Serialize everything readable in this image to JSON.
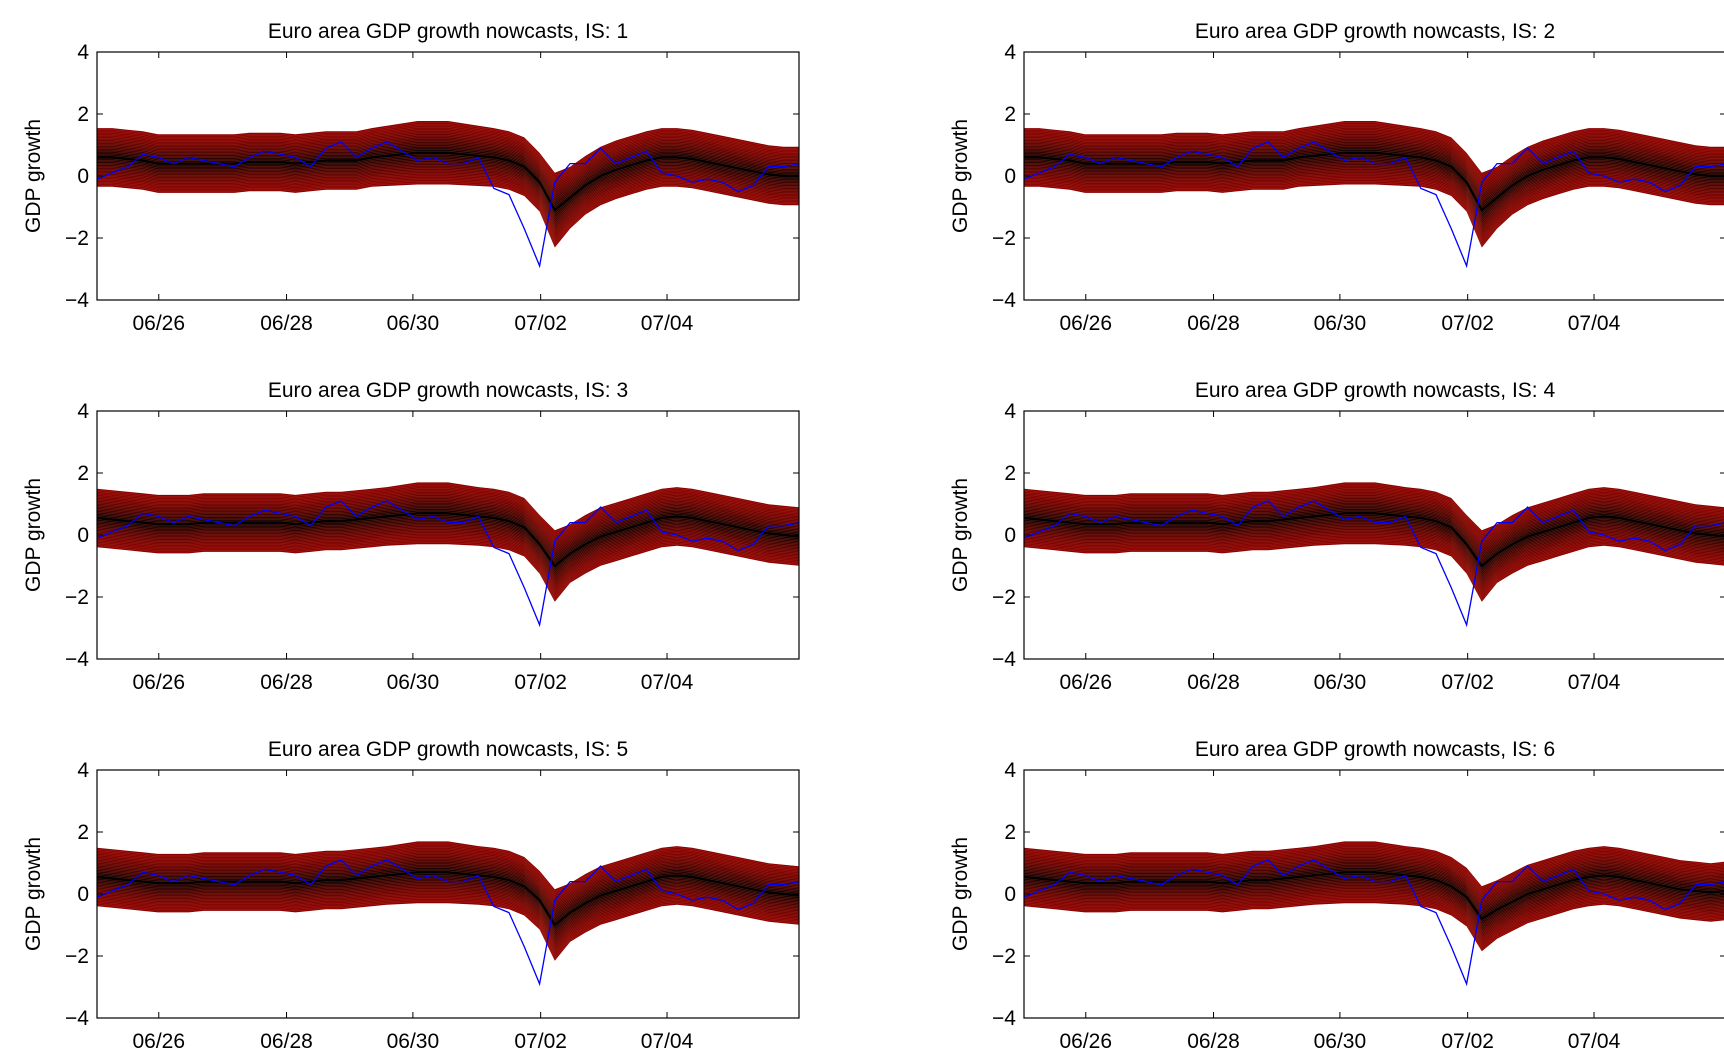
{
  "chart_data": [
    {
      "type": "area",
      "title": "Euro area GDP growth nowcasts, IS: 1",
      "ylabel": "GDP growth",
      "xlabel": "",
      "ylim": [
        -4,
        4
      ],
      "yticks": [
        -4,
        -2,
        0,
        2,
        4
      ],
      "xticks": [
        "06/26",
        "06/28",
        "06/30",
        "07/02",
        "07/04"
      ],
      "grid": false,
      "x_range": [
        "2006Q2",
        "2007Q4"
      ],
      "bands": {
        "colors": [
          "#8b0000",
          "#000000"
        ],
        "levels": 20
      },
      "actual": {
        "color": "#0000ff",
        "x": [
          "2005Q2",
          "2005Q3",
          "2005Q4",
          "2006Q1",
          "2006Q2",
          "2006Q3",
          "2006Q4",
          "2007Q1",
          "2007Q2",
          "2007Q3",
          "2007Q4",
          "2008Q1",
          "2008Q2",
          "2008Q3",
          "2008Q4",
          "2009Q1",
          "2009Q2",
          "2009Q3",
          "2009Q4",
          "2010Q1",
          "2010Q2",
          "2010Q3",
          "2010Q4",
          "2011Q1",
          "2011Q2",
          "2011Q3",
          "2011Q4",
          "2012Q1",
          "2012Q2",
          "2012Q3",
          "2012Q4",
          "2013Q1",
          "2013Q2",
          "2013Q3",
          "2013Q4",
          "2014Q1",
          "2014Q2",
          "2014Q3",
          "2014Q4",
          "2015Q1",
          "2015Q2",
          "2015Q3",
          "2015Q4",
          "2016Q1",
          "2016Q2",
          "2016Q3",
          "2016Q4"
        ],
        "values": [
          -0.1,
          0.1,
          0.3,
          0.7,
          0.6,
          0.4,
          0.6,
          0.5,
          0.4,
          0.3,
          0.6,
          0.8,
          0.7,
          0.6,
          0.3,
          0.9,
          1.1,
          0.6,
          0.9,
          1.1,
          0.8,
          0.5,
          0.6,
          0.4,
          0.4,
          0.6,
          -0.4,
          -0.6,
          -1.7,
          -2.9,
          -0.2,
          0.4,
          0.4,
          0.9,
          0.4,
          0.6,
          0.8,
          0.1,
          0.0,
          -0.2,
          -0.1,
          -0.2,
          -0.5,
          -0.3,
          0.3,
          0.3,
          0.4
        ]
      },
      "median": {
        "color": "#000000",
        "x": [
          "2005Q2",
          "2005Q3",
          "2005Q4",
          "2006Q1",
          "2006Q2",
          "2006Q3",
          "2006Q4",
          "2007Q1",
          "2007Q2",
          "2007Q3",
          "2007Q4",
          "2008Q1",
          "2008Q2",
          "2008Q3",
          "2008Q4",
          "2009Q1",
          "2009Q2",
          "2009Q3",
          "2009Q4",
          "2010Q1",
          "2010Q2",
          "2010Q3",
          "2010Q4",
          "2011Q1",
          "2011Q2",
          "2011Q3",
          "2011Q4",
          "2012Q1",
          "2012Q2",
          "2012Q3",
          "2012Q4",
          "2013Q1",
          "2013Q2",
          "2013Q3",
          "2013Q4",
          "2014Q1",
          "2014Q2",
          "2014Q3",
          "2014Q4",
          "2015Q1",
          "2015Q2",
          "2015Q3",
          "2015Q4",
          "2016Q1",
          "2016Q2",
          "2016Q3",
          "2016Q4"
        ],
        "values": [
          0.6,
          0.6,
          0.55,
          0.5,
          0.4,
          0.4,
          0.4,
          0.4,
          0.4,
          0.4,
          0.45,
          0.45,
          0.45,
          0.4,
          0.45,
          0.5,
          0.5,
          0.5,
          0.6,
          0.65,
          0.7,
          0.75,
          0.75,
          0.75,
          0.7,
          0.65,
          0.6,
          0.5,
          0.3,
          -0.2,
          -1.1,
          -0.7,
          -0.3,
          0.0,
          0.2,
          0.35,
          0.5,
          0.6,
          0.6,
          0.55,
          0.45,
          0.35,
          0.25,
          0.15,
          0.05,
          0.0,
          0.0
        ],
        "spread": 0.45
      }
    },
    {
      "type": "area",
      "title": "Euro area GDP growth nowcasts, IS: 2",
      "ylabel": "GDP growth",
      "xlabel": "",
      "ylim": [
        -4,
        4
      ],
      "yticks": [
        -4,
        -2,
        0,
        2,
        4
      ],
      "xticks": [
        "06/26",
        "06/28",
        "06/30",
        "07/02",
        "07/04"
      ],
      "grid": false,
      "bands": {
        "colors": [
          "#8b0000",
          "#000000"
        ],
        "levels": 20
      },
      "actual": {
        "color": "#0000ff",
        "values": [
          -0.1,
          0.1,
          0.3,
          0.7,
          0.6,
          0.4,
          0.6,
          0.5,
          0.4,
          0.3,
          0.6,
          0.8,
          0.7,
          0.6,
          0.3,
          0.9,
          1.1,
          0.6,
          0.9,
          1.1,
          0.8,
          0.5,
          0.6,
          0.4,
          0.4,
          0.6,
          -0.4,
          -0.6,
          -1.7,
          -2.9,
          -0.2,
          0.4,
          0.4,
          0.9,
          0.4,
          0.6,
          0.8,
          0.1,
          0.0,
          -0.2,
          -0.1,
          -0.2,
          -0.5,
          -0.3,
          0.3,
          0.3,
          0.4
        ]
      },
      "median": {
        "color": "#000000",
        "values": [
          0.6,
          0.6,
          0.55,
          0.5,
          0.4,
          0.4,
          0.4,
          0.4,
          0.4,
          0.4,
          0.45,
          0.45,
          0.45,
          0.4,
          0.45,
          0.5,
          0.5,
          0.5,
          0.6,
          0.65,
          0.7,
          0.75,
          0.75,
          0.75,
          0.7,
          0.65,
          0.6,
          0.5,
          0.3,
          -0.2,
          -1.1,
          -0.7,
          -0.3,
          0.0,
          0.2,
          0.35,
          0.5,
          0.6,
          0.6,
          0.55,
          0.45,
          0.35,
          0.25,
          0.15,
          0.05,
          0.0,
          0.0
        ],
        "spread": 0.45
      }
    },
    {
      "type": "area",
      "title": "Euro area GDP growth nowcasts, IS: 3",
      "ylabel": "GDP growth",
      "xlabel": "",
      "ylim": [
        -4,
        4
      ],
      "yticks": [
        -4,
        -2,
        0,
        2,
        4
      ],
      "xticks": [
        "06/26",
        "06/28",
        "06/30",
        "07/02",
        "07/04"
      ],
      "grid": false,
      "bands": {
        "colors": [
          "#8b0000",
          "#000000"
        ],
        "levels": 20
      },
      "actual": {
        "color": "#0000ff",
        "values": [
          -0.1,
          0.1,
          0.3,
          0.7,
          0.6,
          0.4,
          0.6,
          0.5,
          0.4,
          0.3,
          0.6,
          0.8,
          0.7,
          0.6,
          0.3,
          0.9,
          1.1,
          0.6,
          0.9,
          1.1,
          0.8,
          0.5,
          0.6,
          0.4,
          0.4,
          0.6,
          -0.4,
          -0.6,
          -1.7,
          -2.9,
          -0.2,
          0.4,
          0.4,
          0.9,
          0.4,
          0.6,
          0.8,
          0.1,
          0.0,
          -0.2,
          -0.1,
          -0.2,
          -0.5,
          -0.3,
          0.3,
          0.3,
          0.4
        ]
      },
      "median": {
        "color": "#000000",
        "values": [
          0.55,
          0.5,
          0.45,
          0.4,
          0.35,
          0.35,
          0.35,
          0.4,
          0.4,
          0.4,
          0.4,
          0.4,
          0.4,
          0.35,
          0.4,
          0.45,
          0.45,
          0.5,
          0.55,
          0.6,
          0.65,
          0.7,
          0.7,
          0.7,
          0.65,
          0.6,
          0.55,
          0.45,
          0.25,
          -0.3,
          -1.0,
          -0.6,
          -0.3,
          -0.05,
          0.1,
          0.25,
          0.4,
          0.55,
          0.6,
          0.55,
          0.45,
          0.35,
          0.25,
          0.15,
          0.05,
          0.0,
          -0.05
        ],
        "spread": 0.45
      }
    },
    {
      "type": "area",
      "title": "Euro area GDP growth nowcasts, IS: 4",
      "ylabel": "GDP growth",
      "xlabel": "",
      "ylim": [
        -4,
        4
      ],
      "yticks": [
        -4,
        -2,
        0,
        2,
        4
      ],
      "xticks": [
        "06/26",
        "06/28",
        "06/30",
        "07/02",
        "07/04"
      ],
      "grid": false,
      "bands": {
        "colors": [
          "#8b0000",
          "#000000"
        ],
        "levels": 20
      },
      "actual": {
        "color": "#0000ff",
        "values": [
          -0.1,
          0.1,
          0.3,
          0.7,
          0.6,
          0.4,
          0.6,
          0.5,
          0.4,
          0.3,
          0.6,
          0.8,
          0.7,
          0.6,
          0.3,
          0.9,
          1.1,
          0.6,
          0.9,
          1.1,
          0.8,
          0.5,
          0.6,
          0.4,
          0.4,
          0.6,
          -0.4,
          -0.6,
          -1.7,
          -2.9,
          -0.2,
          0.4,
          0.4,
          0.9,
          0.4,
          0.6,
          0.8,
          0.1,
          0.0,
          -0.2,
          -0.1,
          -0.2,
          -0.5,
          -0.3,
          0.3,
          0.3,
          0.4
        ]
      },
      "median": {
        "color": "#000000",
        "values": [
          0.55,
          0.5,
          0.45,
          0.4,
          0.35,
          0.35,
          0.35,
          0.4,
          0.4,
          0.4,
          0.4,
          0.4,
          0.4,
          0.35,
          0.4,
          0.45,
          0.45,
          0.5,
          0.55,
          0.6,
          0.65,
          0.7,
          0.7,
          0.7,
          0.65,
          0.6,
          0.55,
          0.45,
          0.25,
          -0.3,
          -1.0,
          -0.6,
          -0.3,
          -0.05,
          0.1,
          0.25,
          0.4,
          0.55,
          0.6,
          0.55,
          0.45,
          0.35,
          0.25,
          0.15,
          0.05,
          0.0,
          -0.05
        ],
        "spread": 0.45
      }
    },
    {
      "type": "area",
      "title": "Euro area GDP growth nowcasts, IS: 5",
      "ylabel": "GDP growth",
      "xlabel": "",
      "ylim": [
        -4,
        4
      ],
      "yticks": [
        -4,
        -2,
        0,
        2,
        4
      ],
      "xticks": [
        "06/26",
        "06/28",
        "06/30",
        "07/02",
        "07/04"
      ],
      "grid": false,
      "bands": {
        "colors": [
          "#8b0000",
          "#000000"
        ],
        "levels": 20
      },
      "actual": {
        "color": "#0000ff",
        "values": [
          -0.1,
          0.1,
          0.3,
          0.7,
          0.6,
          0.4,
          0.6,
          0.5,
          0.4,
          0.3,
          0.6,
          0.8,
          0.7,
          0.6,
          0.3,
          0.9,
          1.1,
          0.6,
          0.9,
          1.1,
          0.8,
          0.5,
          0.6,
          0.4,
          0.4,
          0.6,
          -0.4,
          -0.6,
          -1.7,
          -2.9,
          -0.2,
          0.4,
          0.4,
          0.9,
          0.4,
          0.6,
          0.8,
          0.1,
          0.0,
          -0.2,
          -0.1,
          -0.2,
          -0.5,
          -0.3,
          0.3,
          0.3,
          0.4
        ]
      },
      "median": {
        "color": "#000000",
        "values": [
          0.55,
          0.5,
          0.45,
          0.4,
          0.35,
          0.35,
          0.35,
          0.4,
          0.4,
          0.4,
          0.4,
          0.4,
          0.4,
          0.35,
          0.4,
          0.45,
          0.45,
          0.5,
          0.55,
          0.6,
          0.65,
          0.7,
          0.7,
          0.7,
          0.65,
          0.6,
          0.55,
          0.45,
          0.25,
          -0.2,
          -1.0,
          -0.6,
          -0.3,
          -0.05,
          0.1,
          0.25,
          0.4,
          0.55,
          0.6,
          0.55,
          0.45,
          0.35,
          0.25,
          0.15,
          0.05,
          0.0,
          -0.05
        ],
        "spread": 0.45
      }
    },
    {
      "type": "area",
      "title": "Euro area GDP growth nowcasts, IS: 6",
      "ylabel": "GDP growth",
      "xlabel": "",
      "ylim": [
        -4,
        4
      ],
      "yticks": [
        -4,
        -2,
        0,
        2,
        4
      ],
      "xticks": [
        "06/26",
        "06/28",
        "06/30",
        "07/02",
        "07/04"
      ],
      "grid": false,
      "bands": {
        "colors": [
          "#8b0000",
          "#000000"
        ],
        "levels": 20
      },
      "actual": {
        "color": "#0000ff",
        "values": [
          -0.1,
          0.1,
          0.3,
          0.7,
          0.6,
          0.4,
          0.6,
          0.5,
          0.4,
          0.3,
          0.6,
          0.8,
          0.7,
          0.6,
          0.3,
          0.9,
          1.1,
          0.6,
          0.9,
          1.1,
          0.8,
          0.5,
          0.6,
          0.4,
          0.4,
          0.6,
          -0.4,
          -0.6,
          -1.7,
          -2.9,
          -0.2,
          0.4,
          0.4,
          0.9,
          0.4,
          0.6,
          0.8,
          0.1,
          0.0,
          -0.2,
          -0.1,
          -0.2,
          -0.5,
          -0.3,
          0.3,
          0.3,
          0.4
        ]
      },
      "median": {
        "color": "#000000",
        "values": [
          0.55,
          0.5,
          0.45,
          0.4,
          0.35,
          0.35,
          0.35,
          0.4,
          0.4,
          0.4,
          0.4,
          0.4,
          0.4,
          0.35,
          0.4,
          0.45,
          0.45,
          0.5,
          0.55,
          0.6,
          0.65,
          0.7,
          0.7,
          0.7,
          0.65,
          0.6,
          0.55,
          0.45,
          0.25,
          -0.1,
          -0.8,
          -0.5,
          -0.25,
          0.0,
          0.15,
          0.3,
          0.45,
          0.55,
          0.6,
          0.55,
          0.45,
          0.35,
          0.25,
          0.15,
          0.1,
          0.05,
          0.1
        ],
        "spread": 0.45
      }
    }
  ]
}
